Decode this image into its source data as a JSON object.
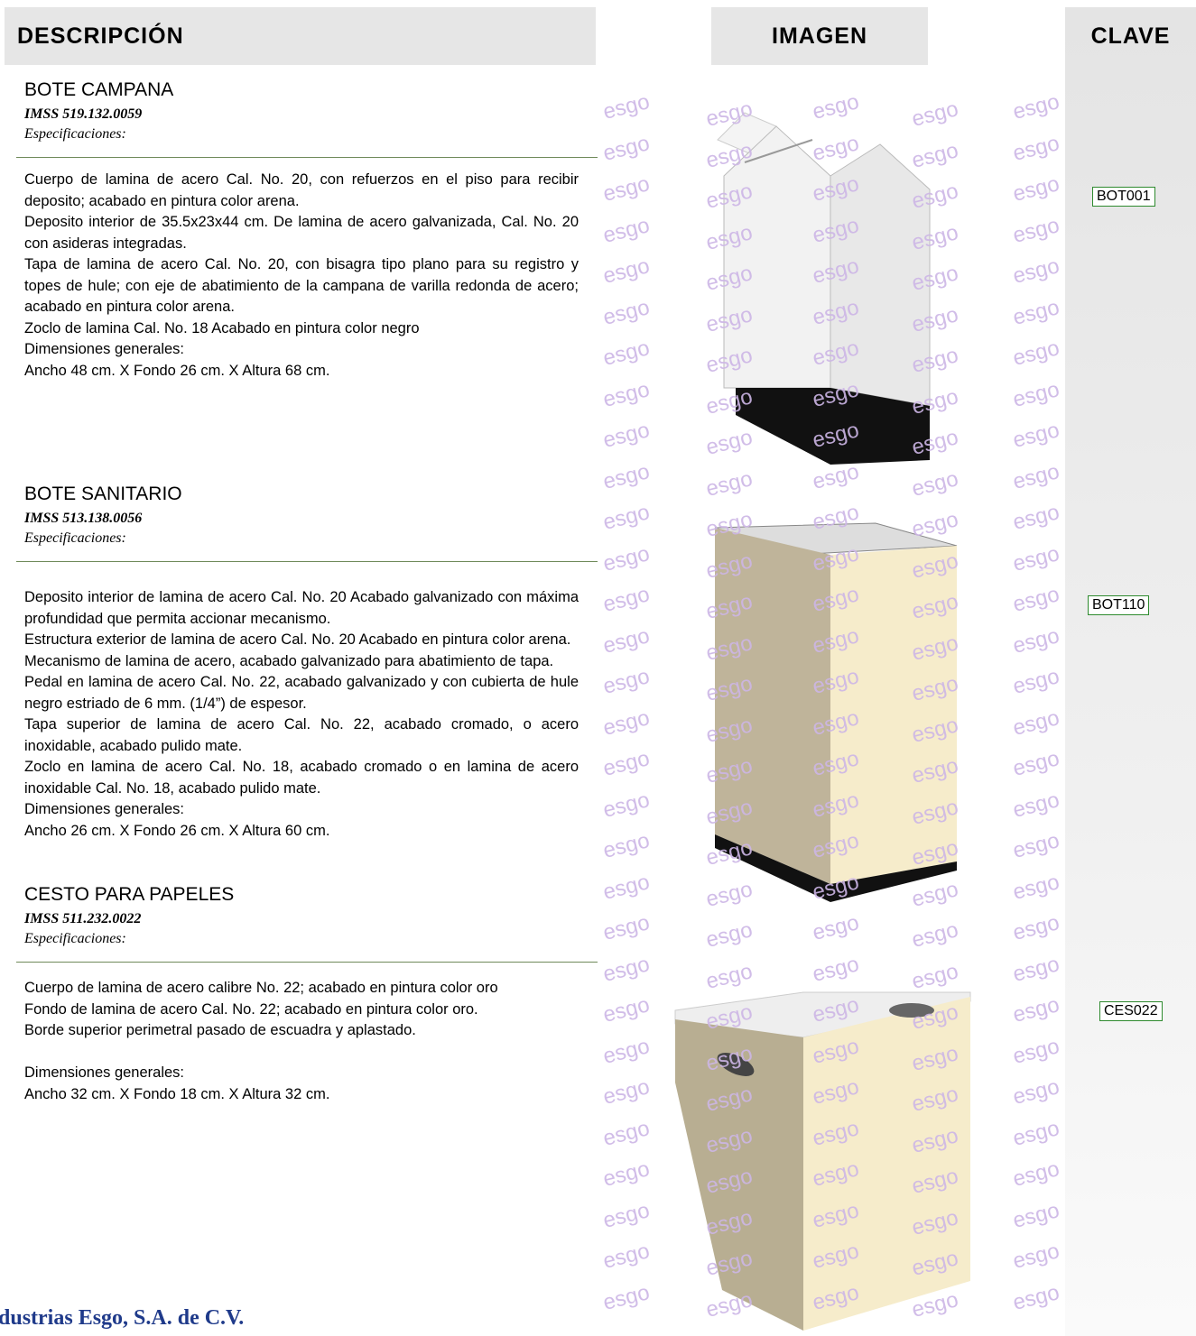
{
  "header": {
    "description": "DESCRIPCIÓN",
    "image": "IMAGEN",
    "code": "CLAVE"
  },
  "products": [
    {
      "name": "BOTE CAMPANA",
      "imss": "IMSS  519.132.0059",
      "spec_label": "Especificaciones:",
      "code": "BOT001",
      "paragraphs": [
        "Cuerpo de lamina de acero Cal. No. 20, con refuerzos en el piso para recibir deposito; acabado en pintura color arena.",
        "Deposito interior de 35.5x23x44 cm. De lamina de acero galvanizada, Cal. No. 20 con asideras integradas.",
        "Tapa de lamina de acero Cal. No. 20, con bisagra tipo plano para su registro y topes de hule; con eje de abatimiento de la campana de varilla redonda de acero; acabado en pintura color arena.",
        "Zoclo de lamina Cal. No. 18 Acabado en pintura color negro",
        "Dimensiones generales:",
        "Ancho 48 cm. X Fondo 26 cm. X Altura 68 cm."
      ]
    },
    {
      "name": "BOTE SANITARIO",
      "imss": "IMSS 513.138.0056",
      "spec_label": "Especificaciones:",
      "code": "BOT110",
      "paragraphs": [
        "Deposito interior de lamina de acero Cal. No. 20 Acabado galvanizado con máxima profundidad que permita accionar mecanismo.",
        "Estructura exterior de lamina de acero Cal. No. 20 Acabado en pintura color arena.",
        "Mecanismo de lamina de acero, acabado galvanizado para abatimiento de tapa.",
        "Pedal en lamina de acero Cal. No. 22, acabado galvanizado y con cubierta de hule negro estriado de 6 mm. (1/4”) de espesor.",
        "Tapa superior de lamina de acero Cal. No. 22, acabado cromado, o acero inoxidable, acabado pulido mate.",
        "Zoclo en lamina de acero Cal. No. 18, acabado cromado o en lamina de acero inoxidable Cal. No. 18, acabado pulido mate.",
        "Dimensiones generales:",
        "Ancho 26 cm. X Fondo 26 cm. X Altura 60 cm."
      ]
    },
    {
      "name": "CESTO PARA PAPELES",
      "imss": "IMSS 511.232.0022",
      "spec_label": "Especificaciones:",
      "code": "CES022",
      "paragraphs": [
        "Cuerpo de lamina de acero calibre No. 22; acabado en pintura color oro",
        "Fondo de lamina de acero Cal. No. 22; acabado en pintura color oro.",
        "Borde superior perimetral pasado de escuadra y aplastado.",
        "Dimensiones generales:",
        "Ancho 32 cm. X Fondo 18 cm. X Altura 32 cm."
      ]
    }
  ],
  "watermark": "esgo",
  "footer": "dustrias Esgo, S.A. de C.V."
}
